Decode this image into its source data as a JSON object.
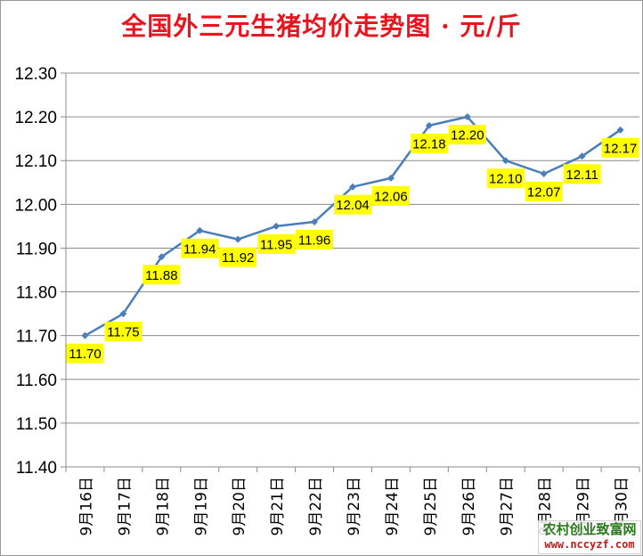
{
  "chart_data": {
    "type": "line",
    "title": "全国外三元生猪均价走势图 · 元/斤",
    "categories": [
      "9月16日",
      "9月17日",
      "9月18日",
      "9月19日",
      "9月20日",
      "9月21日",
      "9月22日",
      "9月23日",
      "9月24日",
      "9月25日",
      "9月26日",
      "9月27日",
      "9月28日",
      "9月29日",
      "9月30日"
    ],
    "values": [
      11.7,
      11.75,
      11.88,
      11.94,
      11.92,
      11.95,
      11.96,
      12.04,
      12.06,
      12.18,
      12.2,
      12.1,
      12.07,
      12.11,
      12.17
    ],
    "data_labels": [
      "11.70",
      "11.75",
      "11.88",
      "11.94",
      "11.92",
      "11.95",
      "11.96",
      "12.04",
      "12.06",
      "12.18",
      "12.20",
      "12.10",
      "12.07",
      "12.11",
      "12.17"
    ],
    "y_ticks": [
      "11.40",
      "11.50",
      "11.60",
      "11.70",
      "11.80",
      "11.90",
      "12.00",
      "12.10",
      "12.20",
      "12.30"
    ],
    "ylim": [
      11.4,
      12.3
    ],
    "grid": true,
    "line_color": "#4a7ebb",
    "label_bg": "#ffff00"
  },
  "watermark": {
    "line1": "农村创业致富网",
    "line2": "www.nccyzf.com"
  }
}
